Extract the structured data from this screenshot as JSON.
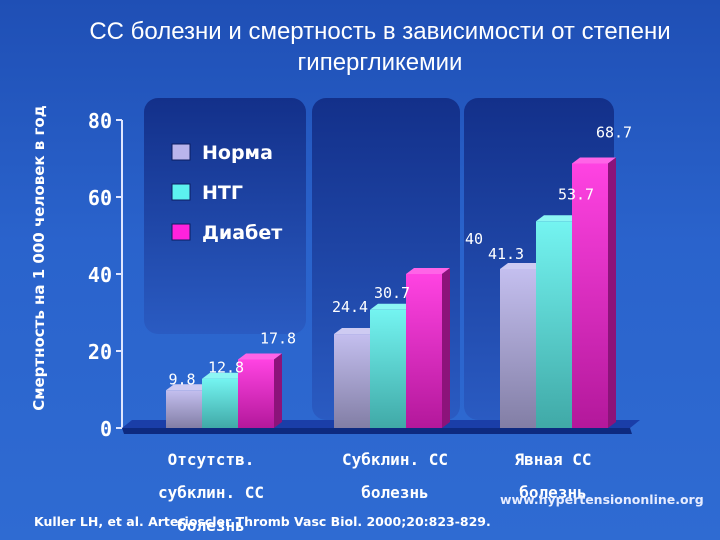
{
  "title": "СС болезни и смертность в зависимости от степени гипергликемии",
  "citation": "Kuller LH, et al. Arterioscler Thromb Vasc Biol. 2000;20:823-829.",
  "website": "www.hypertensiononline.org",
  "colors": {
    "norma": "#b9b4ec",
    "ntg": "#5cf2ef",
    "diabet": "#ff22dd",
    "background": "#2a60c8",
    "plot_panel": "#1f3f9c"
  },
  "chart_data": {
    "type": "bar",
    "title": "СС болезни и смертность в зависимости от степени гипергликемии",
    "ylabel": "Смертность на 1 000 человек в год",
    "xlabel": "",
    "ylim": [
      0,
      80
    ],
    "yticks": [
      "0",
      "20",
      "40",
      "60",
      "80"
    ],
    "grid": false,
    "legend_position": "top-left",
    "categories": [
      "Отсутств. субклин. СС болезнь",
      "Субклин. СС болезнь",
      "Явная СС болезнь"
    ],
    "category_lines": [
      [
        "Отсутств.",
        "субклин. СС",
        "болезнь"
      ],
      [
        "Субклин. СС",
        "болезнь"
      ],
      [
        "Явная СС",
        "болезнь"
      ]
    ],
    "series": [
      {
        "name": "Норма",
        "values": [
          9.8,
          24.4,
          41.3
        ],
        "labels": [
          "9.8",
          "24.4",
          "41.3"
        ]
      },
      {
        "name": "НТГ",
        "values": [
          12.8,
          30.7,
          53.7
        ],
        "labels": [
          "12.8",
          "30.7",
          "53.7"
        ]
      },
      {
        "name": "Диабет",
        "values": [
          17.8,
          40,
          68.7
        ],
        "labels": [
          "17.8",
          "40",
          "68.7"
        ]
      }
    ]
  }
}
